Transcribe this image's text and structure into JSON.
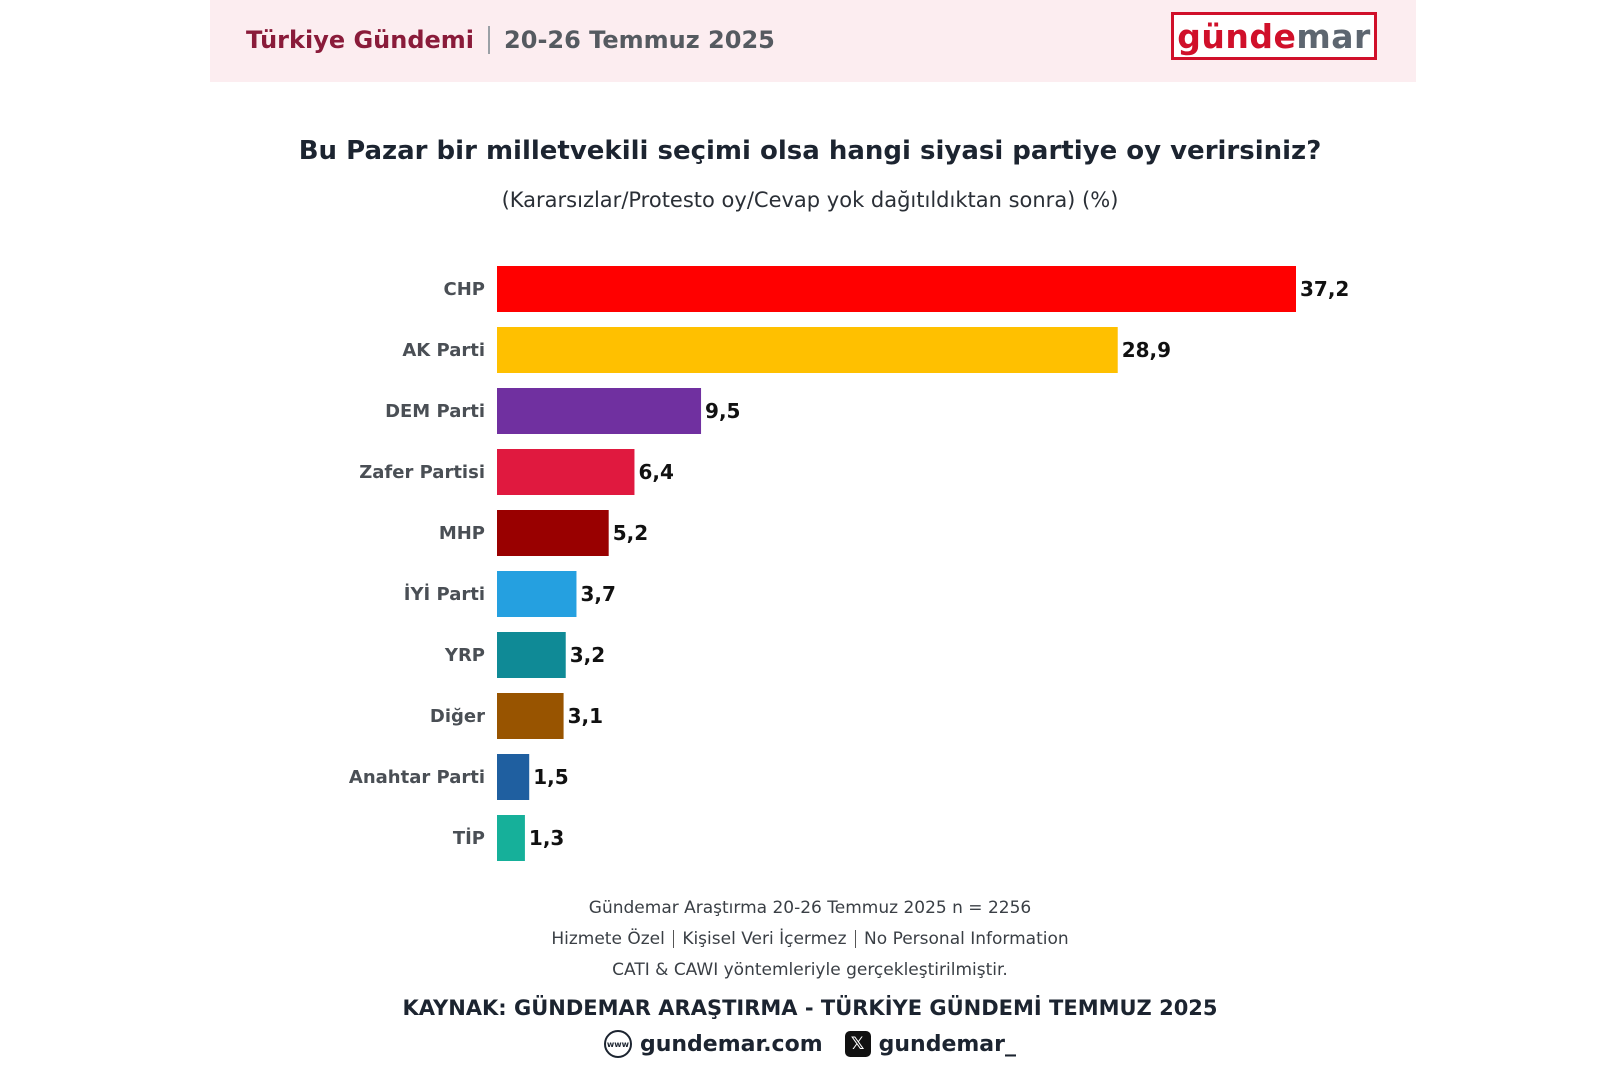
{
  "header": {
    "title": "Türkiye Gündemi",
    "date": "20-26 Temmuz 2025",
    "logo_part1": "günde",
    "logo_part2": "mar"
  },
  "chart_data": {
    "type": "bar",
    "orientation": "horizontal",
    "title": "Bu Pazar bir milletvekili seçimi olsa hangi siyasi partiye oy verirsiniz?",
    "subtitle": "(Kararsızlar/Protesto oy/Cevap yok dağıtıldıktan sonra) (%)",
    "categories": [
      "CHP",
      "AK Parti",
      "DEM Parti",
      "Zafer Partisi",
      "MHP",
      "İYİ Parti",
      "YRP",
      "Diğer",
      "Anahtar Parti",
      "TİP"
    ],
    "values": [
      37.2,
      28.9,
      9.5,
      6.4,
      5.2,
      3.7,
      3.2,
      3.1,
      1.5,
      1.3
    ],
    "value_labels": [
      "37,2",
      "28,9",
      "9,5",
      "6,4",
      "5,2",
      "3,7",
      "3,2",
      "3,1",
      "1,5",
      "1,3"
    ],
    "colors": [
      "#ff0000",
      "#ffc000",
      "#7030a0",
      "#e0193f",
      "#990000",
      "#25a0e0",
      "#0f8a96",
      "#985400",
      "#1f5fa0",
      "#16b09a"
    ],
    "xlim": [
      0,
      37.2
    ],
    "grid": false,
    "legend": "none"
  },
  "footer": {
    "line1": "Gündemar Araştırma 20-26 Temmuz 2025 n = 2256",
    "line2_parts": [
      "Hizmete Özel",
      "Kişisel Veri İçermez",
      "No Personal Information"
    ],
    "line3": "CATI & CAWI yöntemleriyle gerçekleştirilmiştir.",
    "source": "KAYNAK: GÜNDEMAR ARAŞTIRMA - TÜRKİYE GÜNDEMİ TEMMUZ 2025",
    "website": "gundemar.com",
    "twitter": "gundemar_",
    "website_icon": "www-globe-icon",
    "twitter_icon": "x-logo-icon"
  }
}
